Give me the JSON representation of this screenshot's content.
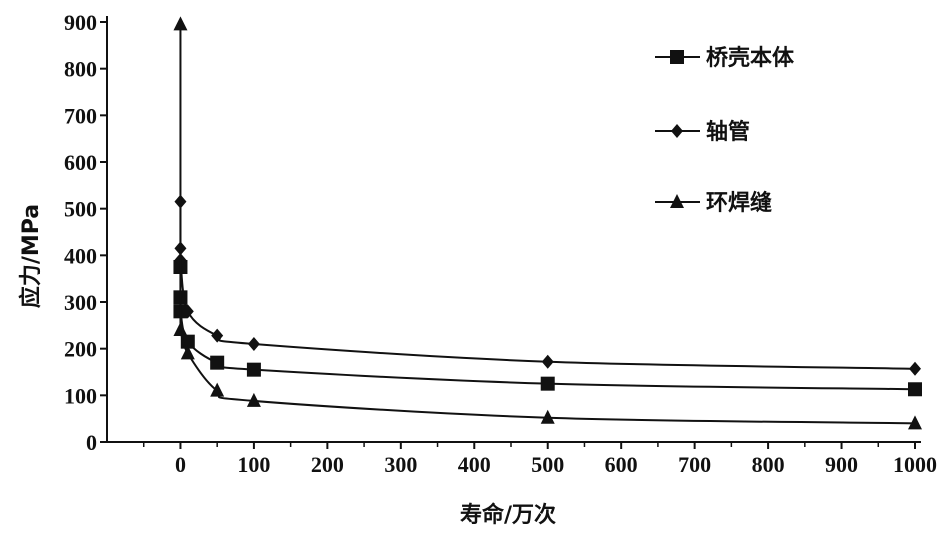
{
  "chart_data": {
    "type": "line",
    "title": "",
    "xlabel": "寿命/万次",
    "ylabel": "应力/MPa",
    "xlim": [
      -100,
      1000
    ],
    "ylim": [
      0,
      900
    ],
    "xticks": [
      0,
      100,
      200,
      300,
      400,
      500,
      600,
      700,
      800,
      900,
      1000
    ],
    "yticks": [
      0,
      100,
      200,
      300,
      400,
      500,
      600,
      700,
      800,
      900
    ],
    "grid": false,
    "legend_position": "top-right",
    "series": [
      {
        "name": "桥壳本体",
        "marker": "square",
        "points": [
          [
            0,
            375
          ],
          [
            0,
            310
          ],
          [
            0,
            280
          ],
          [
            10,
            215
          ],
          [
            50,
            170
          ],
          [
            100,
            155
          ],
          [
            500,
            125
          ],
          [
            1000,
            113
          ]
        ]
      },
      {
        "name": "轴管",
        "marker": "diamond",
        "points": [
          [
            0,
            515
          ],
          [
            0,
            415
          ],
          [
            0,
            390
          ],
          [
            10,
            280
          ],
          [
            50,
            228
          ],
          [
            100,
            210
          ],
          [
            500,
            172
          ],
          [
            1000,
            157
          ]
        ]
      },
      {
        "name": "环焊缝",
        "marker": "triangle",
        "points": [
          [
            0,
            895
          ],
          [
            0,
            240
          ],
          [
            10,
            190
          ],
          [
            50,
            110
          ],
          [
            100,
            88
          ],
          [
            500,
            52
          ],
          [
            1000,
            40
          ]
        ]
      }
    ]
  }
}
